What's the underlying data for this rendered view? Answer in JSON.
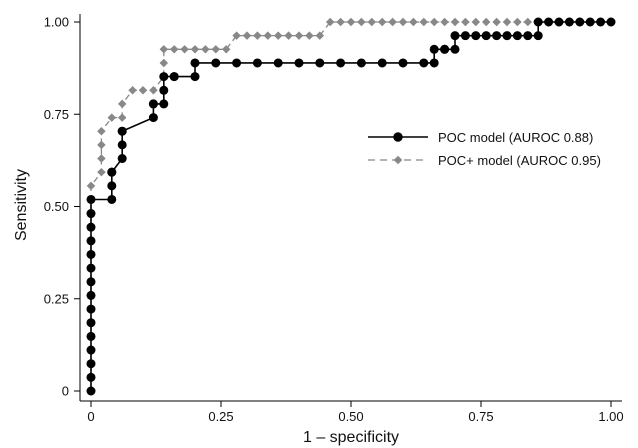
{
  "chart_data": {
    "type": "line",
    "title": "",
    "xlabel": "1 – specificity",
    "ylabel": "Sensitivity",
    "xlim": [
      0,
      1
    ],
    "ylim": [
      0,
      1
    ],
    "x_ticks": [
      0,
      0.25,
      0.5,
      0.75,
      1
    ],
    "x_tick_labels": [
      "0",
      "0.25",
      "0.50",
      "0.75",
      "1.00"
    ],
    "y_ticks": [
      0,
      0.25,
      0.5,
      0.75,
      1
    ],
    "y_tick_labels": [
      "0",
      "0.25",
      "0.50",
      "0.75",
      "1.00"
    ],
    "grid": false,
    "legend_position": "right",
    "series": [
      {
        "name": "POC model (AUROC 0.88)",
        "color": "#000000",
        "marker": "circle",
        "line_style": "solid",
        "x": [
          0,
          0,
          0,
          0,
          0,
          0,
          0,
          0,
          0,
          0,
          0,
          0,
          0,
          0,
          0,
          0.04,
          0.04,
          0.04,
          0.04,
          0.06,
          0.06,
          0.06,
          0.06,
          0.12,
          0.12,
          0.12,
          0.14,
          0.14,
          0.14,
          0.16,
          0.16,
          0.2,
          0.2,
          0.24,
          0.28,
          0.32,
          0.36,
          0.4,
          0.44,
          0.48,
          0.52,
          0.56,
          0.6,
          0.64,
          0.66,
          0.66,
          0.68,
          0.68,
          0.7,
          0.7,
          0.72,
          0.74,
          0.76,
          0.78,
          0.8,
          0.82,
          0.84,
          0.86,
          0.86,
          0.88,
          0.9,
          0.92,
          0.94,
          0.96,
          0.98,
          1
        ],
        "y": [
          0,
          0.037,
          0.074,
          0.111,
          0.148,
          0.185,
          0.222,
          0.259,
          0.296,
          0.333,
          0.37,
          0.407,
          0.444,
          0.481,
          0.519,
          0.519,
          0.556,
          0.593,
          0.593,
          0.63,
          0.667,
          0.704,
          0.704,
          0.741,
          0.778,
          0.778,
          0.778,
          0.815,
          0.852,
          0.852,
          0.852,
          0.852,
          0.889,
          0.889,
          0.889,
          0.889,
          0.889,
          0.889,
          0.889,
          0.889,
          0.889,
          0.889,
          0.889,
          0.889,
          0.889,
          0.926,
          0.926,
          0.926,
          0.926,
          0.963,
          0.963,
          0.963,
          0.963,
          0.963,
          0.963,
          0.963,
          0.963,
          0.963,
          1,
          1,
          1,
          1,
          1,
          1,
          1,
          1
        ]
      },
      {
        "name": "POC+ model (AUROC 0.95)",
        "color": "#888888",
        "marker": "diamond",
        "line_style": "dashed",
        "x": [
          0,
          0,
          0,
          0,
          0,
          0,
          0,
          0,
          0,
          0,
          0,
          0,
          0,
          0,
          0,
          0,
          0.02,
          0.02,
          0.02,
          0.02,
          0.04,
          0.06,
          0.06,
          0.08,
          0.1,
          0.12,
          0.14,
          0.14,
          0.14,
          0.16,
          0.18,
          0.2,
          0.22,
          0.24,
          0.26,
          0.28,
          0.3,
          0.32,
          0.34,
          0.36,
          0.38,
          0.4,
          0.42,
          0.44,
          0.46,
          0.48,
          0.5,
          0.52,
          0.54,
          0.56,
          0.58,
          0.6,
          0.62,
          0.64,
          0.66,
          0.68,
          0.7,
          0.72,
          0.74,
          0.76,
          0.78,
          0.8,
          0.82,
          0.84,
          0.86,
          0.88,
          0.9,
          0.92,
          0.94,
          0.96,
          0.98,
          1
        ],
        "y": [
          0,
          0.037,
          0.074,
          0.111,
          0.148,
          0.185,
          0.222,
          0.259,
          0.296,
          0.333,
          0.37,
          0.407,
          0.444,
          0.481,
          0.519,
          0.556,
          0.593,
          0.63,
          0.667,
          0.704,
          0.741,
          0.741,
          0.778,
          0.815,
          0.815,
          0.815,
          0.852,
          0.889,
          0.926,
          0.926,
          0.926,
          0.926,
          0.926,
          0.926,
          0.926,
          0.963,
          0.963,
          0.963,
          0.963,
          0.963,
          0.963,
          0.963,
          0.963,
          0.963,
          1,
          1,
          1,
          1,
          1,
          1,
          1,
          1,
          1,
          1,
          1,
          1,
          1,
          1,
          1,
          1,
          1,
          1,
          1,
          1,
          1,
          1,
          1,
          1,
          1,
          1,
          1,
          1
        ]
      }
    ]
  }
}
